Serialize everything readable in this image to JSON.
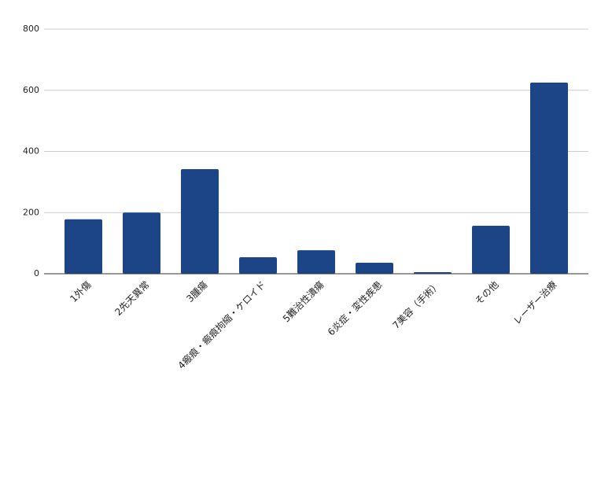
{
  "chart_data": {
    "type": "bar",
    "categories": [
      "1外傷",
      "2先天異常",
      "3腫瘍",
      "4瘢痕・瘢痕拘縮・ケロイド",
      "5難治性潰瘍",
      "6炎症・変性疾患",
      "7美容（手術）",
      "その他",
      "レーザー治療"
    ],
    "values": [
      178,
      200,
      342,
      54,
      77,
      36,
      5,
      157,
      625
    ],
    "color": "#1c4587",
    "ylim": [
      0,
      800
    ],
    "yticks": [
      0,
      200,
      400,
      600,
      800
    ],
    "grid": true
  }
}
